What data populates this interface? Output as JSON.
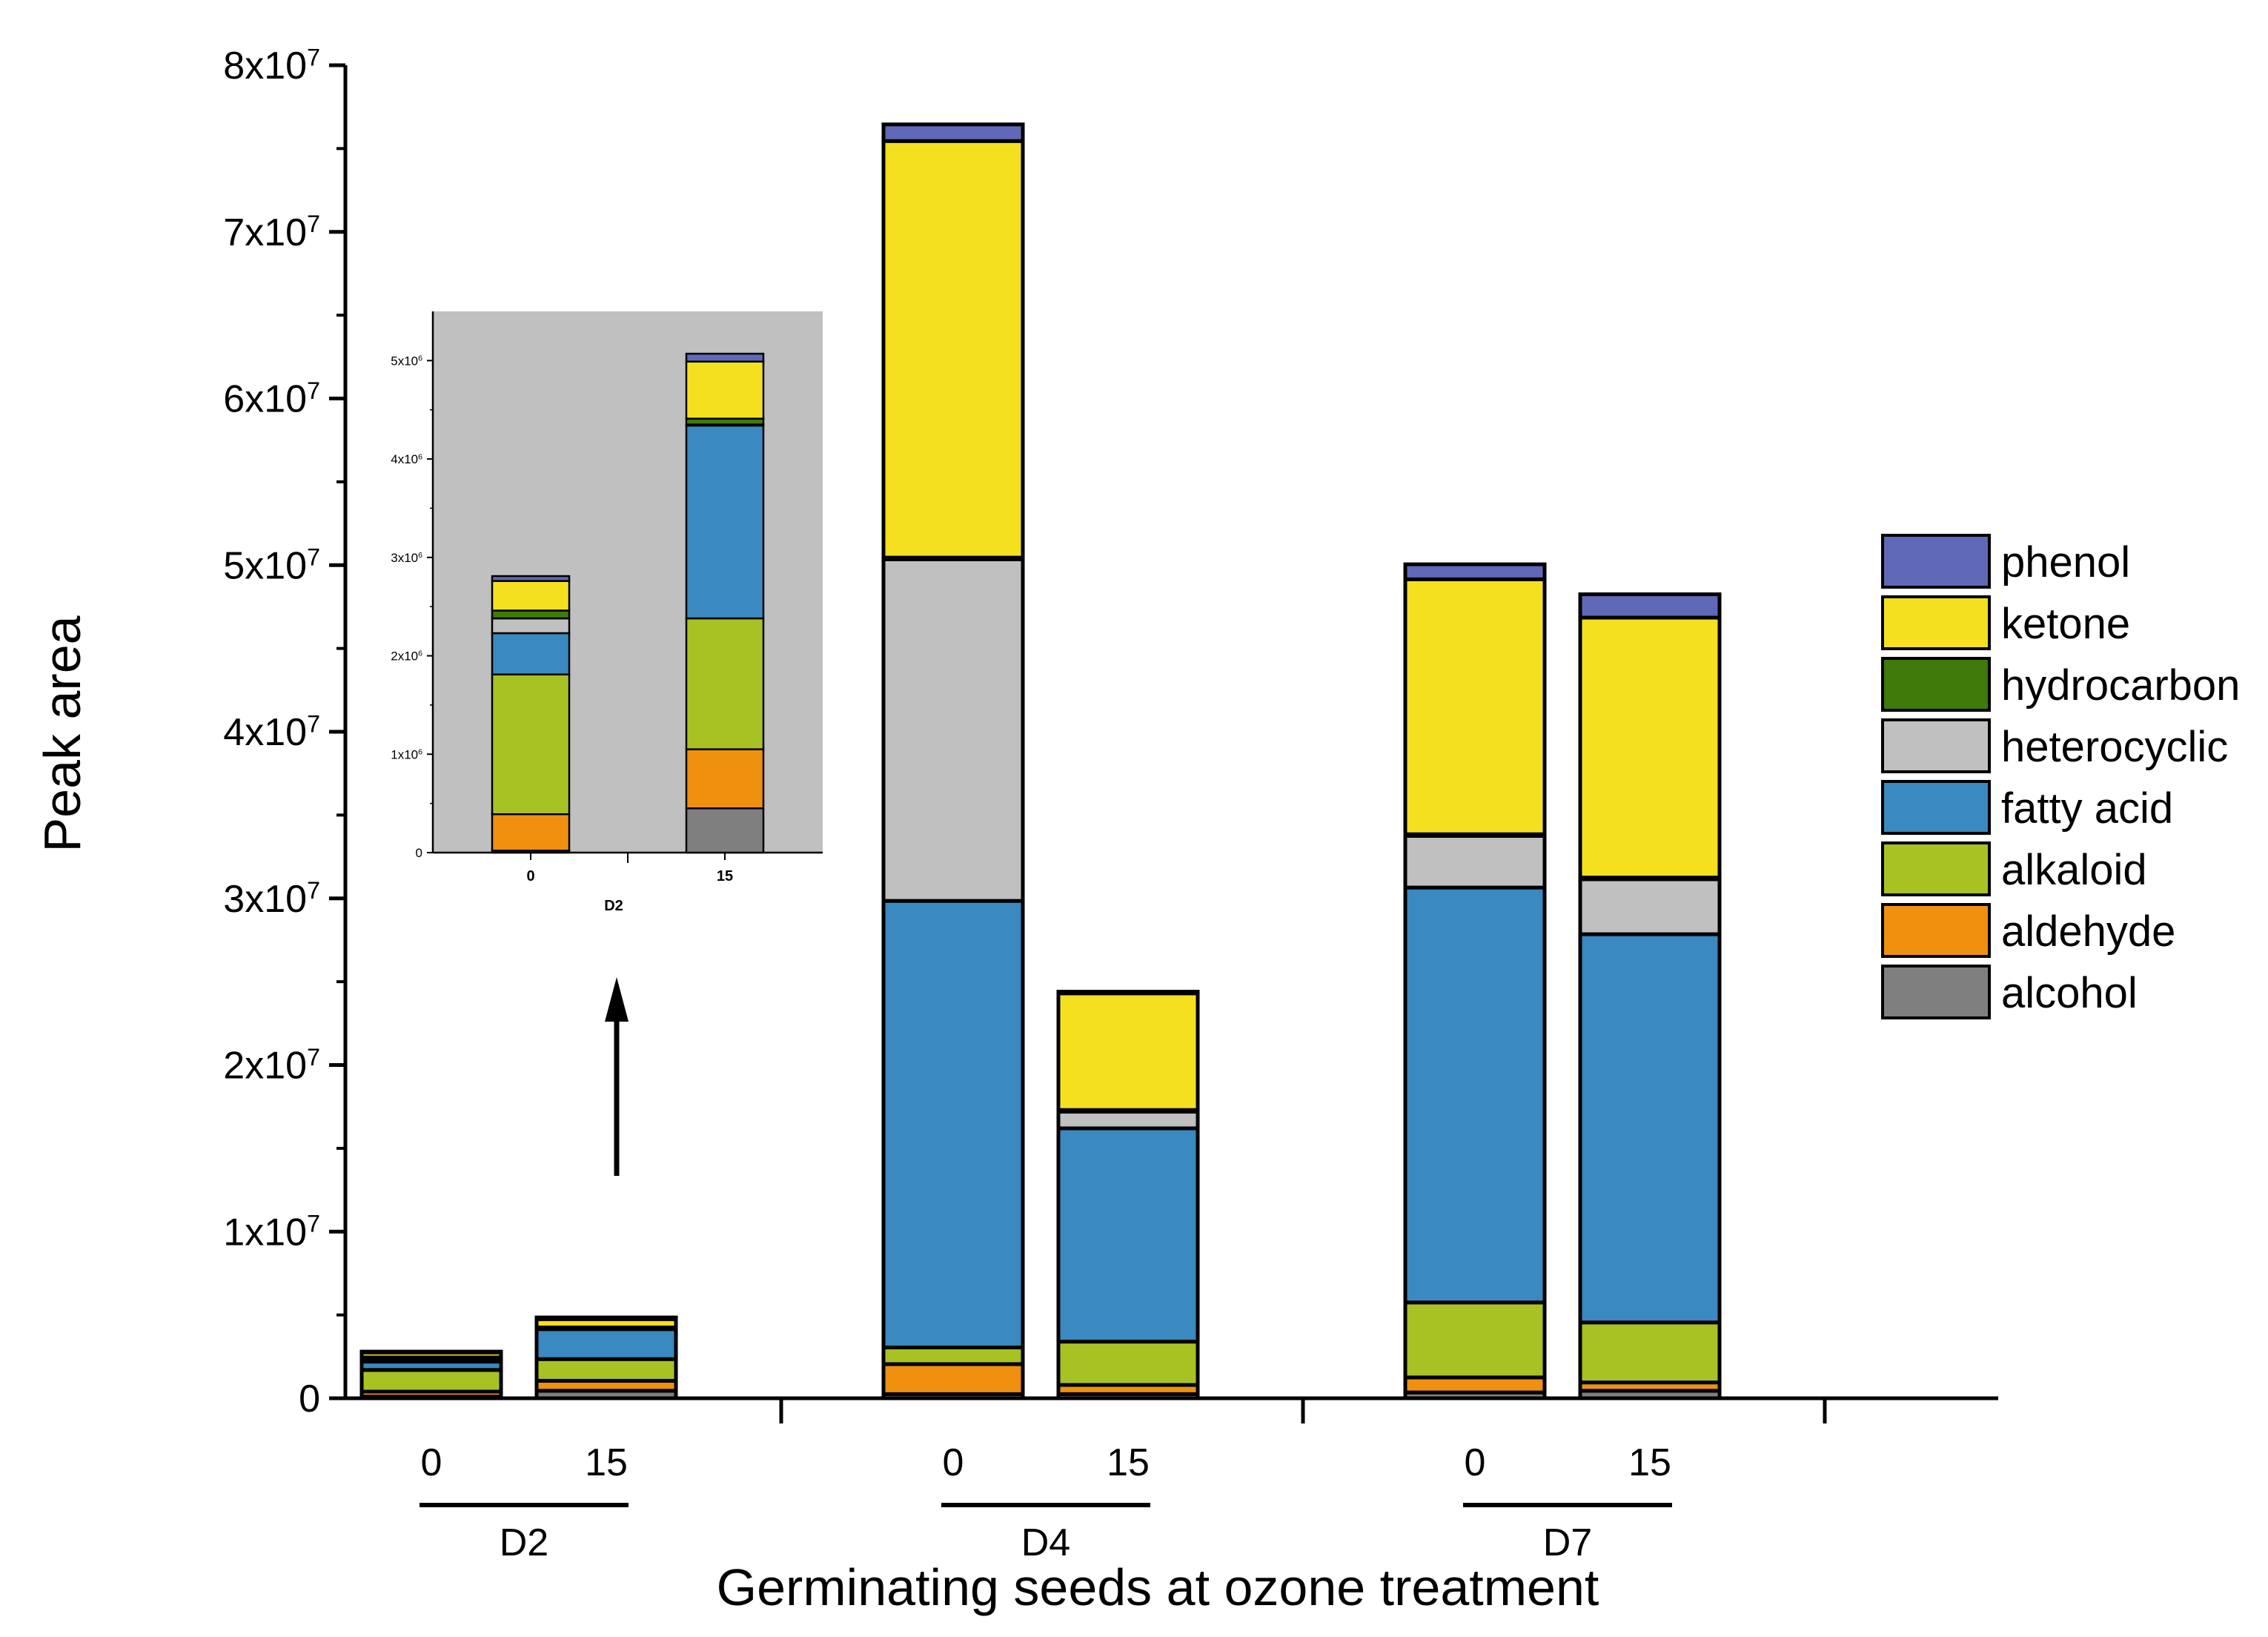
{
  "chart_data": {
    "type": "bar",
    "stacked": true,
    "xlabel": "Germinating seeds at ozone treatment",
    "ylabel": "Peak area",
    "ylim": [
      0,
      80000000
    ],
    "yticks": [
      {
        "value": 0,
        "base": "0",
        "exp": ""
      },
      {
        "value": 10000000,
        "base": "1x10",
        "exp": "7"
      },
      {
        "value": 20000000,
        "base": "2x10",
        "exp": "7"
      },
      {
        "value": 30000000,
        "base": "3x10",
        "exp": "7"
      },
      {
        "value": 40000000,
        "base": "4x10",
        "exp": "7"
      },
      {
        "value": 50000000,
        "base": "5x10",
        "exp": "7"
      },
      {
        "value": 60000000,
        "base": "6x10",
        "exp": "7"
      },
      {
        "value": 70000000,
        "base": "7x10",
        "exp": "7"
      },
      {
        "value": 80000000,
        "base": "8x10",
        "exp": "7"
      }
    ],
    "groups": [
      {
        "label": "D2",
        "bars": [
          "0",
          "15"
        ]
      },
      {
        "label": "D4",
        "bars": [
          "0",
          "15"
        ]
      },
      {
        "label": "D7",
        "bars": [
          "0",
          "15"
        ]
      }
    ],
    "categories": [
      "D2-0",
      "D2-15",
      "D4-0",
      "D4-15",
      "D7-0",
      "D7-15"
    ],
    "bar_labels": [
      "0",
      "15",
      "0",
      "15",
      "0",
      "15"
    ],
    "series": [
      {
        "name": "alcohol",
        "color": "#7f7f7f",
        "values": [
          100000,
          450000,
          250000,
          250000,
          350000,
          450000
        ]
      },
      {
        "name": "aldehyde",
        "color": "#f0900f",
        "values": [
          300000,
          600000,
          1800000,
          550000,
          900000,
          500000
        ]
      },
      {
        "name": "alkaloid",
        "color": "#a8c224",
        "values": [
          1300000,
          1300000,
          1000000,
          2600000,
          4500000,
          3600000
        ]
      },
      {
        "name": "fatty acid",
        "color": "#3a89c0",
        "values": [
          500000,
          1800000,
          26800000,
          12800000,
          24900000,
          23300000
        ]
      },
      {
        "name": "heterocyclic",
        "color": "#c0c0c0",
        "values": [
          150000,
          50000,
          20500000,
          1000000,
          3100000,
          3300000
        ]
      },
      {
        "name": "hydrocarbon",
        "color": "#3f7a0a",
        "values": [
          100000,
          50000,
          100000,
          100000,
          100000,
          100000
        ]
      },
      {
        "name": "ketone",
        "color": "#f5e020",
        "values": [
          300000,
          500000,
          25000000,
          7000000,
          15300000,
          15600000
        ]
      },
      {
        "name": "phenol",
        "color": "#6068b8",
        "values": [
          50000,
          100000,
          1000000,
          100000,
          900000,
          1400000
        ]
      }
    ],
    "legend_position": "right",
    "legend_order": [
      "phenol",
      "ketone",
      "hydrocarbon",
      "heterocyclic",
      "fatty acid",
      "alkaloid",
      "aldehyde",
      "alcohol"
    ],
    "inset": {
      "group_label": "D2",
      "bar_labels": [
        "0",
        "15"
      ],
      "ylim": [
        0,
        5500000
      ],
      "yticks": [
        {
          "value": 0,
          "base": "0",
          "exp": ""
        },
        {
          "value": 1000000,
          "base": "1x10",
          "exp": "6"
        },
        {
          "value": 2000000,
          "base": "2x10",
          "exp": "6"
        },
        {
          "value": 3000000,
          "base": "3x10",
          "exp": "6"
        },
        {
          "value": 4000000,
          "base": "4x10",
          "exp": "6"
        },
        {
          "value": 5000000,
          "base": "5x10",
          "exp": "6"
        }
      ],
      "series": [
        {
          "name": "alcohol",
          "values": [
            20000,
            450000
          ]
        },
        {
          "name": "aldehyde",
          "values": [
            370000,
            600000
          ]
        },
        {
          "name": "alkaloid",
          "values": [
            1420000,
            1330000
          ]
        },
        {
          "name": "fatty acid",
          "values": [
            420000,
            1960000
          ]
        },
        {
          "name": "heterocyclic",
          "values": [
            150000,
            10000
          ]
        },
        {
          "name": "hydrocarbon",
          "values": [
            80000,
            60000
          ]
        },
        {
          "name": "ketone",
          "values": [
            300000,
            580000
          ]
        },
        {
          "name": "phenol",
          "values": [
            50000,
            80000
          ]
        }
      ]
    },
    "annotations": [
      "arrow pointing from D2 bars up to inset"
    ]
  }
}
